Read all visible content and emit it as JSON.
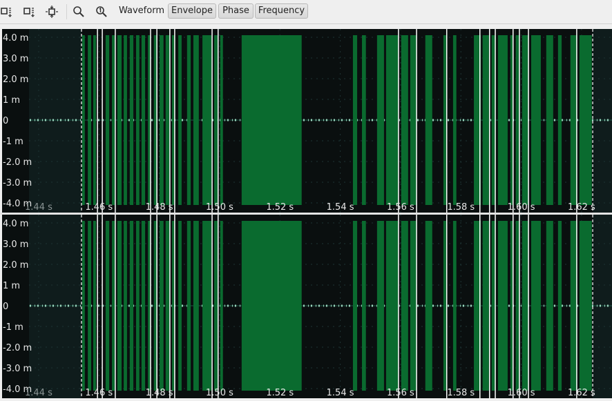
{
  "toolbar": {
    "icons": [
      "fit-vertical-icon",
      "fit-horizontal-icon",
      "zoom-fit-icon",
      "zoom-in-icon",
      "zoom-one-icon"
    ],
    "mode_label": "Waveform",
    "buttons": [
      {
        "label": "Envelope"
      },
      {
        "label": "Phase"
      },
      {
        "label": "Frequency"
      }
    ]
  },
  "colors": {
    "background": "#0a0f0f",
    "outside_selection": "#0f1c1c",
    "signal": "#0a6b2f",
    "marker": "#ffffff",
    "axis_text": "#e8e8e8",
    "dim_text": "#8a9494"
  },
  "view": {
    "t_start": 1.4368,
    "t_end": 1.6301,
    "selection": [
      1.4542,
      1.6237
    ]
  },
  "y_axis": {
    "range": [
      -4.3,
      4.3
    ],
    "ticks": [
      {
        "v": 4,
        "label": "4.0 m"
      },
      {
        "v": 3,
        "label": "3.0 m"
      },
      {
        "v": 2,
        "label": "2.0 m"
      },
      {
        "v": 1,
        "label": "1 m"
      },
      {
        "v": 0,
        "label": "0"
      },
      {
        "v": -1,
        "label": "-1 m"
      },
      {
        "v": -2,
        "label": "-2.0 m"
      },
      {
        "v": -3,
        "label": "-3.0 m"
      },
      {
        "v": -4,
        "label": "-4.0 m"
      }
    ]
  },
  "x_axis": {
    "ticks": [
      {
        "v": 1.44,
        "label": "1.44 s"
      },
      {
        "v": 1.46,
        "label": "1.46 s"
      },
      {
        "v": 1.48,
        "label": "1.48 s"
      },
      {
        "v": 1.5,
        "label": "1.50 s"
      },
      {
        "v": 1.52,
        "label": "1.52 s"
      },
      {
        "v": 1.54,
        "label": "1.54 s"
      },
      {
        "v": 1.56,
        "label": "1.56 s"
      },
      {
        "v": 1.58,
        "label": "1.58 s"
      },
      {
        "v": 1.6,
        "label": "1.60 s"
      },
      {
        "v": 1.62,
        "label": "1.62 s"
      }
    ]
  },
  "bursts": [
    [
      1.4544,
      1.4553
    ],
    [
      1.4563,
      1.4574
    ],
    [
      1.4581,
      1.459
    ],
    [
      1.4622,
      1.4634
    ],
    [
      1.4643,
      1.4652
    ],
    [
      1.4661,
      1.4675
    ],
    [
      1.4682,
      1.4693
    ],
    [
      1.4702,
      1.4714
    ],
    [
      1.4723,
      1.4734
    ],
    [
      1.4741,
      1.4753
    ],
    [
      1.4762,
      1.4771
    ],
    [
      1.4782,
      1.4792
    ],
    [
      1.4801,
      1.4814
    ],
    [
      1.4821,
      1.4833
    ],
    [
      1.4842,
      1.4851
    ],
    [
      1.4863,
      1.4874
    ],
    [
      1.4892,
      1.4904
    ],
    [
      1.4913,
      1.4931
    ],
    [
      1.4943,
      1.4973
    ],
    [
      1.4982,
      1.4993
    ],
    [
      1.5002,
      1.5011
    ],
    [
      1.5073,
      1.5272
    ],
    [
      1.5442,
      1.5456
    ],
    [
      1.5472,
      1.5485
    ],
    [
      1.5522,
      1.5545
    ],
    [
      1.5552,
      1.5593
    ],
    [
      1.5602,
      1.5625
    ],
    [
      1.5632,
      1.5653
    ],
    [
      1.5682,
      1.5705
    ],
    [
      1.5742,
      1.5753
    ],
    [
      1.5774,
      1.5785
    ],
    [
      1.5843,
      1.5866
    ],
    [
      1.5872,
      1.5893
    ],
    [
      1.5902,
      1.5914
    ],
    [
      1.5923,
      1.5955
    ],
    [
      1.5964,
      1.5973
    ],
    [
      1.5982,
      1.5994
    ],
    [
      1.6003,
      1.6024
    ],
    [
      1.6033,
      1.6065
    ],
    [
      1.6083,
      1.6106
    ],
    [
      1.6122,
      1.6134
    ],
    [
      1.6163,
      1.6186
    ],
    [
      1.6193,
      1.6234
    ]
  ],
  "burst_amplitude": 4.1,
  "markers": [
    1.4595,
    1.4611,
    1.4654,
    1.4771,
    1.4792,
    1.4835,
    1.4851,
    1.4975,
    1.4995,
    1.5593,
    1.5653,
    1.5753,
    1.5863,
    1.5895,
    1.5914,
    1.5973,
    1.5994,
    1.6024,
    1.6184
  ],
  "channels": [
    {
      "id": "ch1"
    },
    {
      "id": "ch2"
    }
  ]
}
